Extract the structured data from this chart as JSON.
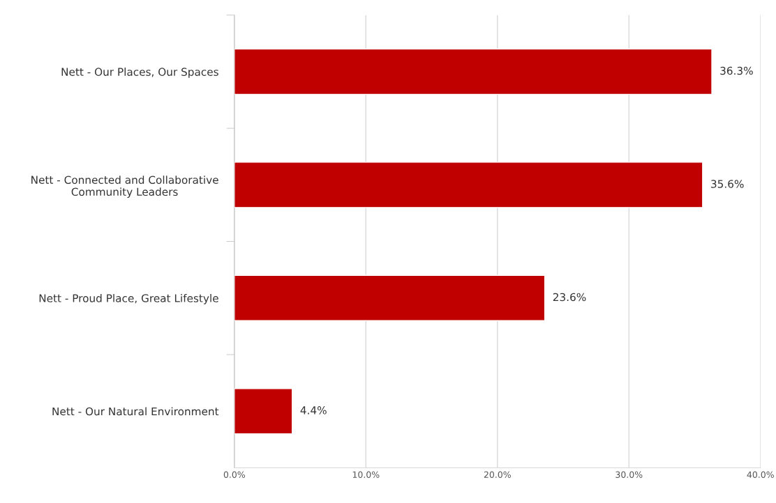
{
  "chart_data": {
    "type": "bar",
    "orientation": "horizontal",
    "categories": [
      "Nett - Our Places, Our Spaces",
      "Nett - Connected and Collaborative\nCommunity Leaders",
      "Nett - Proud Place, Great Lifestyle",
      "Nett - Our Natural Environment"
    ],
    "values": [
      36.3,
      35.6,
      23.6,
      4.4
    ],
    "value_labels": [
      "36.3%",
      "35.6%",
      "23.6%",
      "4.4%"
    ],
    "color": "#c00000",
    "xlim": [
      0,
      40
    ],
    "xticks": [
      {
        "value": 0,
        "label": "0.0%"
      },
      {
        "value": 10,
        "label": "10.0%"
      },
      {
        "value": 20,
        "label": "20.0%"
      },
      {
        "value": 30,
        "label": "30.0%"
      },
      {
        "value": 40,
        "label": "40.0%"
      }
    ],
    "grid": "x",
    "legend": false
  }
}
